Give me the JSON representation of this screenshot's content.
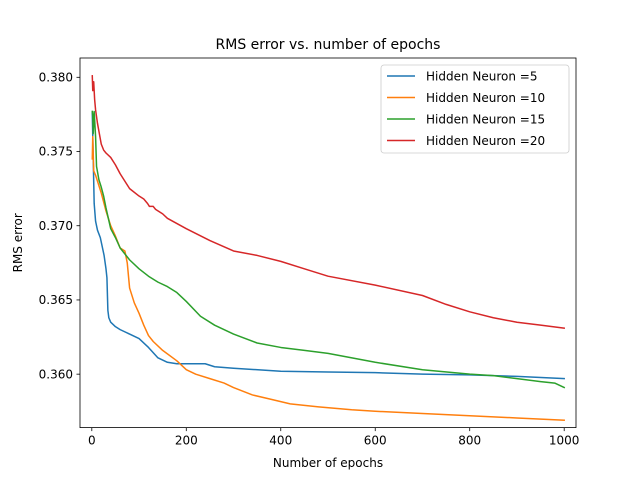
{
  "chart_data": {
    "type": "line",
    "title": "RMS error vs. number of epochs",
    "xlabel": "Number of epochs",
    "ylabel": "RMS error",
    "xlim": [
      -25,
      1025
    ],
    "ylim": [
      0.3564,
      0.3813
    ],
    "xticks": [
      0,
      200,
      400,
      600,
      800,
      1000
    ],
    "xtick_labels": [
      "0",
      "200",
      "400",
      "600",
      "800",
      "1000"
    ],
    "yticks": [
      0.36,
      0.365,
      0.37,
      0.375,
      0.38
    ],
    "ytick_labels": [
      "0.360",
      "0.365",
      "0.370",
      "0.375",
      "0.380"
    ],
    "grid": false,
    "legend": "top-right",
    "series": [
      {
        "name": "Hidden Neuron =5",
        "color": "#1f77b4",
        "x": [
          1,
          3,
          5,
          8,
          12,
          18,
          22,
          26,
          30,
          32,
          34,
          36,
          40,
          50,
          60,
          80,
          100,
          120,
          140,
          160,
          180,
          200,
          220,
          240,
          260,
          300,
          400,
          500,
          600,
          700,
          800,
          900,
          1000
        ],
        "y": [
          0.3776,
          0.3745,
          0.3715,
          0.3703,
          0.3697,
          0.3692,
          0.3686,
          0.368,
          0.3671,
          0.3665,
          0.3643,
          0.3638,
          0.3635,
          0.3632,
          0.363,
          0.3627,
          0.3624,
          0.3618,
          0.3611,
          0.3608,
          0.3607,
          0.3607,
          0.3607,
          0.3607,
          0.3605,
          0.3604,
          0.3602,
          0.36015,
          0.3601,
          0.36,
          0.35995,
          0.35985,
          0.3597
        ]
      },
      {
        "name": "Hidden Neuron =10",
        "color": "#ff7f0e",
        "x": [
          1,
          2,
          4,
          8,
          12,
          16,
          20,
          25,
          30,
          40,
          50,
          60,
          70,
          75,
          80,
          90,
          100,
          110,
          120,
          130,
          150,
          180,
          200,
          220,
          250,
          280,
          300,
          340,
          380,
          420,
          480,
          550,
          600,
          700,
          800,
          900,
          1000
        ],
        "y": [
          0.3745,
          0.376,
          0.3737,
          0.3734,
          0.373,
          0.3726,
          0.3722,
          0.3716,
          0.371,
          0.37,
          0.3693,
          0.3685,
          0.3683,
          0.3675,
          0.3658,
          0.3648,
          0.3641,
          0.3633,
          0.3626,
          0.3622,
          0.3616,
          0.3609,
          0.3603,
          0.36,
          0.3597,
          0.3594,
          0.3591,
          0.3586,
          0.3583,
          0.358,
          0.3578,
          0.3576,
          0.3575,
          0.35735,
          0.3572,
          0.35705,
          0.3569
        ]
      },
      {
        "name": "Hidden Neuron =15",
        "color": "#2ca02c",
        "x": [
          1,
          2,
          3,
          5,
          8,
          10,
          15,
          20,
          25,
          30,
          40,
          50,
          60,
          80,
          100,
          120,
          140,
          160,
          180,
          200,
          230,
          260,
          300,
          350,
          400,
          450,
          500,
          600,
          700,
          800,
          850,
          900,
          950,
          980,
          1000
        ],
        "y": [
          0.3777,
          0.3774,
          0.3762,
          0.3777,
          0.376,
          0.374,
          0.3731,
          0.3726,
          0.372,
          0.3712,
          0.3698,
          0.3692,
          0.3685,
          0.3677,
          0.3671,
          0.3666,
          0.3662,
          0.3659,
          0.3655,
          0.3649,
          0.3639,
          0.3633,
          0.3627,
          0.3621,
          0.3618,
          0.3616,
          0.3614,
          0.3608,
          0.3603,
          0.36,
          0.3599,
          0.3597,
          0.3595,
          0.3594,
          0.3591
        ]
      },
      {
        "name": "Hidden Neuron =20",
        "color": "#d62728",
        "x": [
          1,
          2,
          4,
          6,
          8,
          12,
          16,
          20,
          25,
          30,
          40,
          50,
          60,
          80,
          100,
          110,
          118,
          122,
          125,
          130,
          135,
          140,
          150,
          160,
          200,
          250,
          300,
          350,
          400,
          450,
          500,
          600,
          700,
          750,
          800,
          850,
          900,
          950,
          1000
        ],
        "y": [
          0.3801,
          0.3791,
          0.3797,
          0.3785,
          0.3778,
          0.3769,
          0.3762,
          0.3755,
          0.3751,
          0.3749,
          0.3746,
          0.3741,
          0.3735,
          0.3725,
          0.372,
          0.3718,
          0.3715,
          0.3713,
          0.3713,
          0.3713,
          0.3711,
          0.371,
          0.3708,
          0.3705,
          0.3698,
          0.369,
          0.3683,
          0.368,
          0.3676,
          0.3671,
          0.3666,
          0.366,
          0.3653,
          0.3647,
          0.3642,
          0.3638,
          0.3635,
          0.3633,
          0.3631
        ]
      }
    ]
  }
}
